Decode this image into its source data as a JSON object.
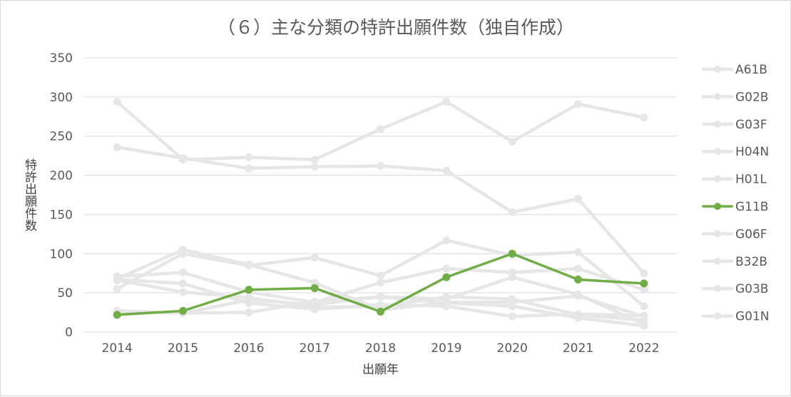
{
  "chart_data": {
    "type": "line",
    "title": "（６）主な分類の特許出願件数（独自作成）",
    "xlabel": "出願年",
    "ylabel": "特許出願件数",
    "ylim": [
      0,
      350
    ],
    "yticks": [
      0,
      50,
      100,
      150,
      200,
      250,
      300,
      350
    ],
    "x": [
      "2014",
      "2015",
      "2016",
      "2017",
      "2018",
      "2019",
      "2020",
      "2021",
      "2022"
    ],
    "grid": "horizontal",
    "legend": "right",
    "highlight_color": "#70ad47",
    "muted_color": "#e6e6e6",
    "series": [
      {
        "name": "A61B",
        "values": [
          294,
          220,
          223,
          220,
          259,
          294,
          243,
          291,
          274
        ]
      },
      {
        "name": "G02B",
        "values": [
          236,
          222,
          209,
          211,
          212,
          206,
          153,
          170,
          75
        ]
      },
      {
        "name": "G03F",
        "values": [
          68,
          105,
          86,
          63,
          28,
          38,
          38,
          46,
          20
        ]
      },
      {
        "name": "H04N",
        "values": [
          55,
          100,
          85,
          95,
          72,
          117,
          98,
          102,
          33
        ]
      },
      {
        "name": "H01L",
        "values": [
          71,
          76,
          51,
          38,
          63,
          81,
          76,
          81,
          54
        ]
      },
      {
        "name": "G11B",
        "values": [
          22,
          27,
          54,
          56,
          26,
          70,
          100,
          67,
          62
        ]
      },
      {
        "name": "G06F",
        "values": [
          26,
          24,
          25,
          39,
          45,
          42,
          70,
          48,
          10
        ]
      },
      {
        "name": "B32B",
        "values": [
          67,
          62,
          37,
          29,
          35,
          33,
          20,
          23,
          21
        ]
      },
      {
        "name": "G03B",
        "values": [
          66,
          51,
          44,
          32,
          32,
          45,
          42,
          22,
          15
        ]
      },
      {
        "name": "G01N",
        "values": [
          27,
          24,
          41,
          35,
          45,
          37,
          33,
          18,
          8
        ]
      }
    ]
  }
}
